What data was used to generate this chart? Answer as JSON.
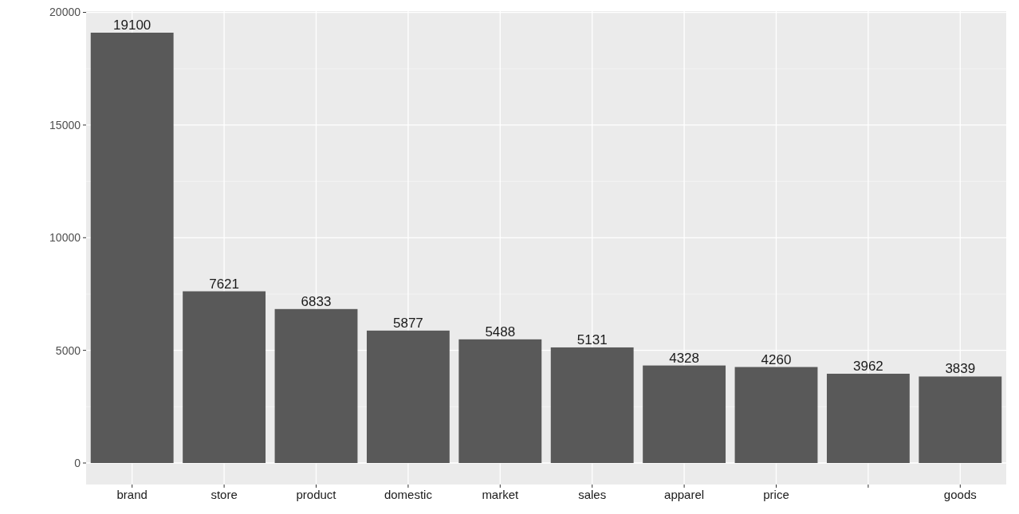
{
  "chart_data": {
    "type": "bar",
    "categories": [
      "brand",
      "store",
      "product",
      "domestic",
      "market",
      "sales",
      "apparel",
      "price",
      null,
      "goods"
    ],
    "values": [
      19100,
      7621,
      6833,
      5877,
      5488,
      5131,
      4328,
      4260,
      3962,
      3839
    ],
    "color": "#595959",
    "ylim": [
      -955,
      20055
    ],
    "yticks": [
      0,
      5000,
      10000,
      15000,
      20000
    ],
    "grid": true,
    "data_labels": true
  }
}
